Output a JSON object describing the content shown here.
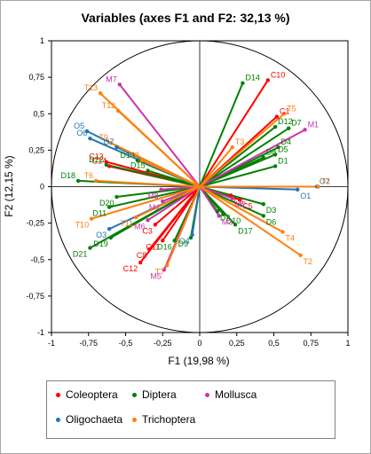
{
  "chart_data": {
    "type": "scatter",
    "title": "Variables (axes F1 and F2: 32,13 %)",
    "xlabel": "F1 (19,98 %)",
    "ylabel": "F2 (12,15 %)",
    "xlim": [
      -1,
      1
    ],
    "ylim": [
      -1,
      1
    ],
    "xticks": [
      "-1",
      "-0,75",
      "-0,5",
      "-0,25",
      "0",
      "0,25",
      "0,5",
      "0,75",
      "1"
    ],
    "yticks": [
      "1",
      "0,75",
      "0,5",
      "0,25",
      "0",
      "-0,25",
      "-0,5",
      "-0,75",
      "-1"
    ],
    "grid": false,
    "unit_circle": true,
    "legend_position": "bottom",
    "series": [
      {
        "name": "Coleoptera",
        "color": "#ff0000",
        "points": [
          {
            "label": "C10",
            "x": 0.46,
            "y": 0.73
          },
          {
            "label": "C1",
            "x": 0.52,
            "y": 0.48
          },
          {
            "label": "C13",
            "x": -0.63,
            "y": 0.17
          },
          {
            "label": "C12",
            "x": -0.4,
            "y": -0.52
          },
          {
            "label": "C8",
            "x": -0.34,
            "y": -0.43
          },
          {
            "label": "C11",
            "x": -0.25,
            "y": -0.37
          },
          {
            "label": "C5",
            "x": 0.27,
            "y": -0.09
          },
          {
            "label": "C6",
            "x": 0.21,
            "y": -0.06
          },
          {
            "label": "C3",
            "x": -0.3,
            "y": -0.26
          },
          {
            "label": "C14",
            "x": -0.61,
            "y": 0.14
          }
        ]
      },
      {
        "name": "Diptera",
        "color": "#008000",
        "points": [
          {
            "label": "D14",
            "x": 0.29,
            "y": 0.71
          },
          {
            "label": "D12",
            "x": 0.51,
            "y": 0.41
          },
          {
            "label": "D4",
            "x": 0.53,
            "y": 0.27
          },
          {
            "label": "D5",
            "x": 0.51,
            "y": 0.22
          },
          {
            "label": "D1",
            "x": 0.51,
            "y": 0.14
          },
          {
            "label": "D3",
            "x": 0.43,
            "y": -0.12
          },
          {
            "label": "D6",
            "x": 0.43,
            "y": -0.2
          },
          {
            "label": "D17",
            "x": 0.24,
            "y": -0.26
          },
          {
            "label": "D10",
            "x": 0.16,
            "y": -0.19
          },
          {
            "label": "D2",
            "x": 0.12,
            "y": -0.17
          },
          {
            "label": "D9",
            "x": -0.06,
            "y": -0.35
          },
          {
            "label": "D16",
            "x": -0.17,
            "y": -0.37
          },
          {
            "label": "D18",
            "x": -0.82,
            "y": 0.04
          },
          {
            "label": "D22",
            "x": -0.63,
            "y": 0.15
          },
          {
            "label": "D13",
            "x": -0.42,
            "y": 0.18
          },
          {
            "label": "D15",
            "x": -0.35,
            "y": 0.11
          },
          {
            "label": "D20",
            "x": -0.56,
            "y": -0.07
          },
          {
            "label": "D11",
            "x": -0.61,
            "y": -0.14
          },
          {
            "label": "D19",
            "x": -0.6,
            "y": -0.35
          },
          {
            "label": "D21",
            "x": -0.74,
            "y": -0.42
          },
          {
            "label": "D7",
            "x": 0.6,
            "y": 0.4
          },
          {
            "label": "D8",
            "x": 0.43,
            "y": 0.2
          }
        ]
      },
      {
        "name": "Mollusca",
        "color": "#cc33aa",
        "points": [
          {
            "label": "M7",
            "x": -0.54,
            "y": 0.7
          },
          {
            "label": "M1",
            "x": 0.71,
            "y": 0.39
          },
          {
            "label": "M2",
            "x": 0.22,
            "y": -0.08
          },
          {
            "label": "M3",
            "x": 0.13,
            "y": -0.2
          },
          {
            "label": "M4",
            "x": -0.25,
            "y": -0.1
          },
          {
            "label": "M5",
            "x": -0.24,
            "y": -0.57
          },
          {
            "label": "M6",
            "x": -0.35,
            "y": -0.23
          },
          {
            "label": "M8",
            "x": -0.26,
            "y": -0.02
          }
        ]
      },
      {
        "name": "Oligochaeta",
        "color": "#1f77b4",
        "points": [
          {
            "label": "O5",
            "x": -0.76,
            "y": 0.38
          },
          {
            "label": "O6",
            "x": -0.74,
            "y": 0.33
          },
          {
            "label": "O1",
            "x": 0.66,
            "y": -0.02
          },
          {
            "label": "O2",
            "x": 0.79,
            "y": 0.0
          },
          {
            "label": "O3",
            "x": -0.61,
            "y": -0.29
          },
          {
            "label": "O4",
            "x": -0.05,
            "y": -0.33
          },
          {
            "label": "O7",
            "x": -0.56,
            "y": 0.27
          }
        ]
      },
      {
        "name": "Trichoptera",
        "color": "#ff7f0e",
        "points": [
          {
            "label": "T13",
            "x": -0.67,
            "y": 0.64
          },
          {
            "label": "T12",
            "x": -0.55,
            "y": 0.52
          },
          {
            "label": "T5",
            "x": 0.57,
            "y": 0.5
          },
          {
            "label": "T3",
            "x": 0.22,
            "y": 0.27
          },
          {
            "label": "T6",
            "x": -0.7,
            "y": 0.04
          },
          {
            "label": "T8",
            "x": -0.39,
            "y": 0.18
          },
          {
            "label": "T9",
            "x": -0.6,
            "y": 0.3
          },
          {
            "label": "T10",
            "x": -0.73,
            "y": -0.22
          },
          {
            "label": "T11",
            "x": -0.43,
            "y": -0.21
          },
          {
            "label": "T7",
            "x": -0.22,
            "y": -0.54
          },
          {
            "label": "T4",
            "x": 0.56,
            "y": -0.31
          },
          {
            "label": "T2",
            "x": 0.68,
            "y": -0.47
          },
          {
            "label": "T1",
            "x": 0.8,
            "y": 0.0
          }
        ]
      }
    ]
  }
}
